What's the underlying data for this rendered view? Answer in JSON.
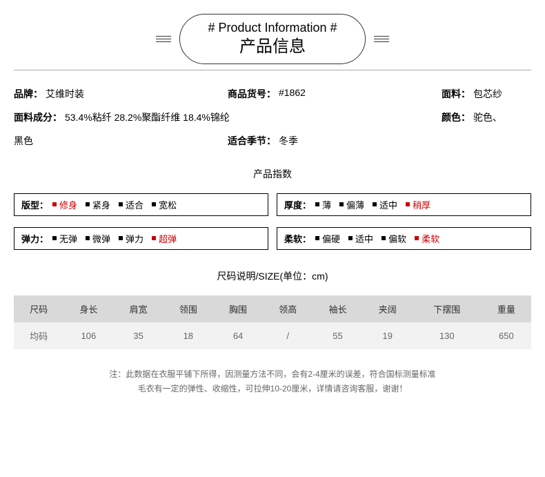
{
  "header": {
    "title_en": "# Product Information #",
    "title_zh": "产品信息",
    "colors": {
      "border": "#333333",
      "text": "#000000"
    }
  },
  "info": {
    "brand_label": "品牌：",
    "brand_value": "艾维时装",
    "sku_label": "商品货号：",
    "sku_value": "#1862",
    "fabric_label": "面料：",
    "fabric_value": "包芯纱",
    "composition_label": "面料成分：",
    "composition_value": "53.4%粘纤   28.2%聚酯纤维   18.4%锦纶",
    "color_label": "颜色：",
    "color_value": "驼色、",
    "extra_color": "黑色",
    "season_label": "适合季节：",
    "season_value": "冬季"
  },
  "index": {
    "title": "产品指数",
    "groups": [
      {
        "label": "版型：",
        "options": [
          "修身",
          "紧身",
          "适合",
          "宽松"
        ],
        "active": 0
      },
      {
        "label": "厚度：",
        "options": [
          "薄",
          "偏薄",
          "适中",
          "稍厚"
        ],
        "active": 3
      },
      {
        "label": "弹力：",
        "options": [
          "无弹",
          "微弹",
          "弹力",
          "超弹"
        ],
        "active": 3
      },
      {
        "label": "柔软：",
        "options": [
          "偏硬",
          "适中",
          "偏软",
          "柔软"
        ],
        "active": 3
      }
    ],
    "colors": {
      "active": "#cc0000",
      "normal": "#000000"
    }
  },
  "size": {
    "title": "尺码说明/SIZE(单位：cm)",
    "headers": [
      "尺码",
      "身长",
      "肩宽",
      "领围",
      "胸围",
      "领高",
      "袖长",
      "夹阔",
      "下摆围",
      "重量"
    ],
    "rows": [
      [
        "均码",
        "106",
        "35",
        "18",
        "64",
        "/",
        "55",
        "19",
        "130",
        "650"
      ]
    ],
    "colors": {
      "th_bg": "#d9d9d9",
      "td_bg": "#f2f2f2",
      "text": "#666666"
    }
  },
  "notes": {
    "line1": "注：此数据在衣服平铺下所得，因测量方法不同，会有2-4厘米的误差，符合国标测量标准",
    "line2": "毛衣有一定的弹性、收缩性，可拉伸10-20厘米，详情请咨询客服，谢谢！"
  }
}
